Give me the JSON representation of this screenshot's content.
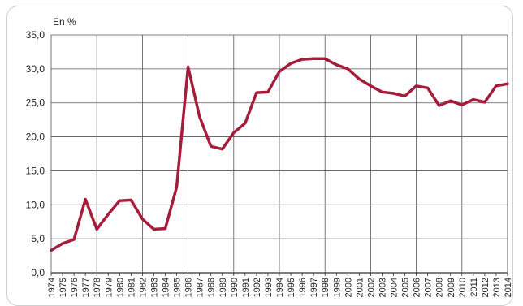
{
  "chart_data": {
    "type": "line",
    "unit_label": "En %",
    "x": [
      "1974",
      "1975",
      "1976",
      "1977",
      "1978",
      "1979",
      "1980",
      "1981",
      "1982",
      "1983",
      "1984",
      "1985",
      "1986",
      "1987",
      "1988",
      "1989",
      "1990",
      "1991",
      "1992",
      "1993",
      "1994",
      "1995",
      "1996",
      "1997",
      "1998",
      "1999",
      "2000",
      "2001",
      "2002",
      "2003",
      "2004",
      "2005",
      "2006",
      "2007",
      "2008",
      "2009",
      "2010",
      "2011",
      "2012",
      "2013",
      "2014"
    ],
    "series": [
      {
        "values": [
          3.3,
          4.3,
          4.9,
          10.8,
          6.4,
          8.6,
          10.6,
          10.7,
          7.9,
          6.4,
          6.5,
          12.6,
          30.3,
          23.0,
          18.6,
          18.2,
          20.6,
          22.0,
          26.5,
          26.6,
          29.6,
          30.8,
          31.4,
          31.5,
          31.5,
          30.6,
          30.0,
          28.5,
          27.5,
          26.6,
          26.4,
          26.0,
          27.5,
          27.2,
          24.6,
          25.3,
          24.7,
          25.5,
          25.1,
          27.5,
          27.8
        ]
      }
    ],
    "y_ticks": [
      "0,0",
      "5,0",
      "10,0",
      "15,0",
      "20,0",
      "25,0",
      "30,0",
      "35,0"
    ],
    "ylim": [
      0,
      35
    ],
    "grid": true,
    "line_color": "#a51d3a"
  }
}
